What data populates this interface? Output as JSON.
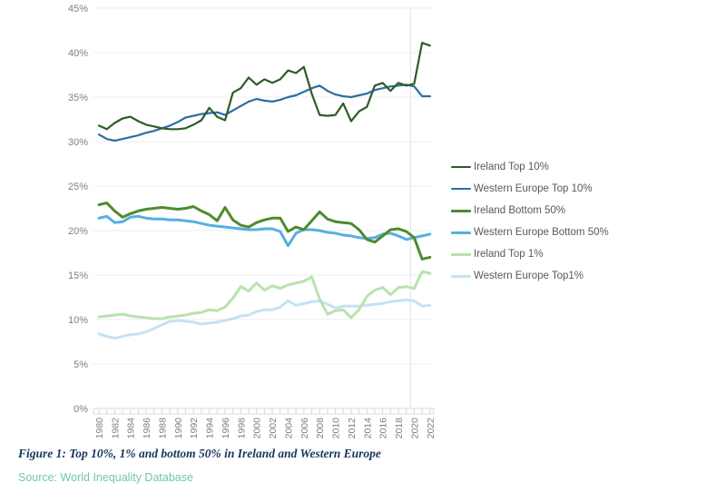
{
  "figure": {
    "caption": "Figure 1: Top 10%, 1% and bottom 50% in Ireland and Western Europe",
    "source": "Source: World Inequality Database",
    "caption_color": "#17365d",
    "source_color": "#70c6b1"
  },
  "chart_data": {
    "type": "line",
    "title": "",
    "xlabel": "",
    "ylabel": "",
    "x_start": 1980,
    "x_end": 2022,
    "x_tick_step": 2,
    "y_axis": {
      "min": 0,
      "max": 45,
      "step": 5,
      "format": "percent"
    },
    "grid": "horizontal",
    "vertical_gridline_year": 2020,
    "legend_position": "right",
    "x": [
      1980,
      1981,
      1982,
      1983,
      1984,
      1985,
      1986,
      1987,
      1988,
      1989,
      1990,
      1991,
      1992,
      1993,
      1994,
      1995,
      1996,
      1997,
      1998,
      1999,
      2000,
      2001,
      2002,
      2003,
      2004,
      2005,
      2006,
      2007,
      2008,
      2009,
      2010,
      2011,
      2012,
      2013,
      2014,
      2015,
      2016,
      2017,
      2018,
      2019,
      2020,
      2021,
      2022
    ],
    "series": [
      {
        "name": "Ireland Top 10%",
        "color": "#2e5c28",
        "width": 2.2,
        "values": [
          31.8,
          31.4,
          32.1,
          32.6,
          32.8,
          32.3,
          31.9,
          31.7,
          31.5,
          31.4,
          31.4,
          31.5,
          31.9,
          32.4,
          33.8,
          32.8,
          32.4,
          35.5,
          36.0,
          37.2,
          36.4,
          37.0,
          36.6,
          37.0,
          38.0,
          37.7,
          38.4,
          35.4,
          33.0,
          32.9,
          33.0,
          34.3,
          32.3,
          33.4,
          33.9,
          36.3,
          36.6,
          35.7,
          36.6,
          36.3,
          36.5,
          41.1,
          40.8
        ]
      },
      {
        "name": "Western Europe Top 10%",
        "color": "#2e6da4",
        "width": 2.2,
        "values": [
          30.8,
          30.3,
          30.1,
          30.3,
          30.5,
          30.7,
          31.0,
          31.2,
          31.5,
          31.8,
          32.2,
          32.7,
          32.9,
          33.1,
          33.2,
          33.3,
          33.0,
          33.5,
          34.0,
          34.5,
          34.8,
          34.6,
          34.5,
          34.7,
          35.0,
          35.2,
          35.6,
          36.0,
          36.3,
          35.7,
          35.3,
          35.1,
          35.0,
          35.2,
          35.4,
          35.8,
          36.0,
          36.2,
          36.3,
          36.4,
          36.2,
          35.1,
          35.1
        ]
      },
      {
        "name": "Ireland Bottom 50%",
        "color": "#4e8b2f",
        "width": 3,
        "values": [
          22.9,
          23.1,
          22.2,
          21.5,
          21.9,
          22.2,
          22.4,
          22.5,
          22.6,
          22.5,
          22.4,
          22.5,
          22.7,
          22.2,
          21.8,
          21.1,
          22.6,
          21.2,
          20.6,
          20.4,
          20.9,
          21.2,
          21.4,
          21.4,
          19.9,
          20.4,
          20.1,
          21.1,
          22.1,
          21.3,
          21.0,
          20.9,
          20.8,
          20.1,
          19.0,
          18.7,
          19.4,
          20.1,
          20.2,
          19.9,
          19.2,
          16.8,
          17.0
        ]
      },
      {
        "name": "Western Europe Bottom 50%",
        "color": "#56b0e0",
        "width": 3,
        "values": [
          21.4,
          21.6,
          20.9,
          21.0,
          21.5,
          21.6,
          21.4,
          21.3,
          21.3,
          21.2,
          21.2,
          21.1,
          21.0,
          20.8,
          20.6,
          20.5,
          20.4,
          20.3,
          20.2,
          20.1,
          20.1,
          20.2,
          20.2,
          19.9,
          18.3,
          19.7,
          20.1,
          20.1,
          20.0,
          19.8,
          19.7,
          19.5,
          19.4,
          19.2,
          19.1,
          19.2,
          19.6,
          19.7,
          19.4,
          19.0,
          19.2,
          19.4,
          19.6
        ]
      },
      {
        "name": "Ireland Top 1%",
        "color": "#b9e2ae",
        "width": 3,
        "values": [
          10.3,
          10.4,
          10.5,
          10.6,
          10.4,
          10.3,
          10.2,
          10.1,
          10.1,
          10.3,
          10.4,
          10.5,
          10.7,
          10.8,
          11.1,
          11.0,
          11.4,
          12.4,
          13.7,
          13.2,
          14.1,
          13.3,
          13.8,
          13.5,
          13.9,
          14.1,
          14.3,
          14.8,
          12.3,
          10.6,
          11.0,
          11.1,
          10.2,
          11.1,
          12.6,
          13.3,
          13.6,
          12.8,
          13.6,
          13.7,
          13.5,
          15.4,
          15.2
        ]
      },
      {
        "name": "Western Europe Top1%",
        "color": "#c5e2f2",
        "width": 3,
        "values": [
          8.4,
          8.1,
          7.9,
          8.1,
          8.3,
          8.4,
          8.6,
          9.0,
          9.4,
          9.8,
          9.9,
          9.8,
          9.7,
          9.5,
          9.6,
          9.7,
          9.9,
          10.1,
          10.4,
          10.5,
          10.9,
          11.1,
          11.1,
          11.4,
          12.1,
          11.6,
          11.8,
          12.0,
          12.1,
          11.7,
          11.3,
          11.5,
          11.5,
          11.5,
          11.6,
          11.7,
          11.8,
          12.0,
          12.1,
          12.2,
          12.1,
          11.5,
          11.6
        ]
      }
    ]
  }
}
